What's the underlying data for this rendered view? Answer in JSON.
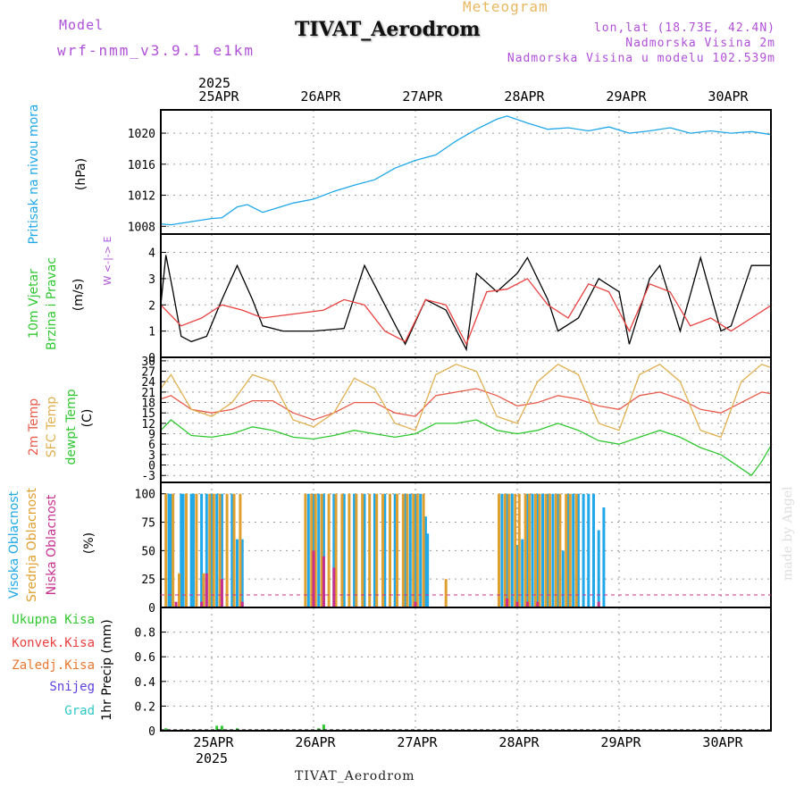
{
  "header": {
    "model_label": "Model",
    "model_run": "wrf-nmm_v3.9.1 e1km",
    "title": "TIVAT_Aerodrom",
    "meteogram": "Meteogram",
    "lonlat": "lon,lat (18.73E, 42.4N)",
    "altitude": "Nadmorska Visina 2m",
    "model_altitude": "Nadmorska Visina u modelu 102.539m"
  },
  "footer": {
    "station": "TIVAT_Aerodrom"
  },
  "watermark": "made by Angel",
  "colors": {
    "pressure": "#1ea7e8",
    "wind_speed": "#000000",
    "wind_gust": "#e84040",
    "temp2m": "#e85a4a",
    "sfc_temp": "#e0b050",
    "dewpoint": "#30c830",
    "high_cloud": "#20a8e8",
    "mid_cloud": "#e0a030",
    "low_cloud": "#c83090",
    "legend_purple": "#b050d8"
  },
  "chart_data": [
    {
      "type": "line",
      "panel": "pressure",
      "title": "",
      "ylabel": "Pritisak na nivou mora",
      "unit": "(hPa)",
      "ylim": [
        1007,
        1023
      ],
      "yticks": [
        1008,
        1012,
        1016,
        1020
      ],
      "x_top_year": "2025",
      "x_days": [
        "25APR",
        "26APR",
        "27APR",
        "28APR",
        "29APR",
        "30APR"
      ],
      "xlim": [
        0,
        6
      ],
      "grid": true,
      "series": [
        {
          "color": "#1ea7e8",
          "x": [
            0,
            0.1,
            0.3,
            0.5,
            0.6,
            0.75,
            0.85,
            1.0,
            1.1,
            1.3,
            1.5,
            1.7,
            1.9,
            2.1,
            2.3,
            2.5,
            2.7,
            2.9,
            3.1,
            3.3,
            3.4,
            3.6,
            3.8,
            4.0,
            4.2,
            4.4,
            4.6,
            4.8,
            5.0,
            5.2,
            5.4,
            5.6,
            5.8,
            6.0
          ],
          "values": [
            1008.3,
            1008.2,
            1008.6,
            1009.0,
            1009.1,
            1010.5,
            1010.8,
            1009.8,
            1010.2,
            1011.0,
            1011.5,
            1012.5,
            1013.3,
            1014.0,
            1015.5,
            1016.5,
            1017.2,
            1019.0,
            1020.5,
            1021.8,
            1022.2,
            1021.3,
            1020.5,
            1020.7,
            1020.3,
            1020.8,
            1020.0,
            1020.3,
            1020.7,
            1020.0,
            1020.3,
            1020.0,
            1020.2,
            1019.8
          ]
        }
      ]
    },
    {
      "type": "line",
      "panel": "wind",
      "title": "",
      "ylabel": "10m Vjetar Brzina i Pravac",
      "unit": "(m/s)",
      "direction_label": "W <-|-> E",
      "ylim": [
        0,
        4.7
      ],
      "yticks": [
        0,
        1,
        2,
        3,
        4
      ],
      "xlim": [
        0,
        6
      ],
      "grid": true,
      "series": [
        {
          "name": "speed",
          "color": "#000000",
          "x": [
            0,
            0.05,
            0.12,
            0.2,
            0.3,
            0.45,
            0.6,
            0.75,
            0.9,
            1.0,
            1.2,
            1.5,
            1.8,
            2.0,
            2.2,
            2.4,
            2.6,
            2.8,
            3.0,
            3.1,
            3.3,
            3.5,
            3.6,
            3.8,
            3.9,
            4.1,
            4.3,
            4.5,
            4.6,
            4.8,
            4.9,
            5.1,
            5.3,
            5.5,
            5.6,
            5.8,
            6.0
          ],
          "values": [
            2.0,
            3.9,
            2.5,
            0.8,
            0.6,
            0.8,
            2.2,
            3.5,
            2.2,
            1.2,
            1.0,
            1.0,
            1.1,
            3.5,
            2.0,
            0.5,
            2.2,
            1.8,
            0.3,
            3.2,
            2.5,
            3.2,
            3.8,
            2.2,
            1.0,
            1.5,
            3.0,
            2.5,
            0.5,
            3.0,
            3.5,
            1.0,
            3.8,
            1.0,
            1.2,
            3.5,
            3.5
          ]
        },
        {
          "name": "gust",
          "color": "#e84040",
          "x": [
            0,
            0.2,
            0.4,
            0.6,
            0.8,
            1.0,
            1.2,
            1.4,
            1.6,
            1.8,
            2.0,
            2.2,
            2.4,
            2.6,
            2.8,
            3.0,
            3.2,
            3.4,
            3.6,
            3.8,
            4.0,
            4.2,
            4.4,
            4.6,
            4.8,
            5.0,
            5.2,
            5.4,
            5.6,
            5.8,
            6.0
          ],
          "values": [
            2.0,
            1.2,
            1.5,
            2.0,
            1.8,
            1.5,
            1.6,
            1.7,
            1.8,
            2.2,
            2.0,
            1.0,
            0.6,
            2.2,
            2.0,
            0.5,
            2.5,
            2.6,
            3.0,
            2.0,
            1.5,
            2.8,
            2.5,
            1.0,
            2.8,
            2.5,
            1.2,
            1.5,
            1.0,
            1.5,
            2.0
          ]
        }
      ]
    },
    {
      "type": "line",
      "panel": "temperature",
      "title": "",
      "ylabel": [
        "2m Temp",
        "SFC Temp",
        "dewpt Temp"
      ],
      "unit": "(C)",
      "ylim": [
        -5,
        31
      ],
      "yticks": [
        -3,
        0,
        3,
        6,
        9,
        12,
        15,
        18,
        21,
        24,
        27,
        30
      ],
      "xlim": [
        0,
        6
      ],
      "grid": true,
      "series": [
        {
          "name": "2m Temp",
          "color": "#e85a4a",
          "x": [
            0,
            0.1,
            0.3,
            0.5,
            0.7,
            0.9,
            1.1,
            1.3,
            1.5,
            1.7,
            1.9,
            2.1,
            2.3,
            2.5,
            2.7,
            2.9,
            3.1,
            3.3,
            3.5,
            3.7,
            3.9,
            4.1,
            4.3,
            4.5,
            4.7,
            4.9,
            5.1,
            5.3,
            5.5,
            5.7,
            5.9,
            6.0
          ],
          "values": [
            19,
            20,
            16,
            15,
            16,
            18.5,
            18.5,
            15,
            13,
            15,
            18,
            18,
            15,
            14,
            20,
            21,
            22,
            20,
            17,
            18,
            20,
            19,
            17,
            16,
            20,
            21,
            19,
            16,
            15,
            18,
            21,
            20.5
          ]
        },
        {
          "name": "SFC Temp",
          "color": "#e0b050",
          "x": [
            0,
            0.1,
            0.3,
            0.5,
            0.7,
            0.9,
            1.1,
            1.3,
            1.5,
            1.7,
            1.9,
            2.1,
            2.3,
            2.5,
            2.7,
            2.9,
            3.1,
            3.3,
            3.5,
            3.7,
            3.9,
            4.1,
            4.3,
            4.5,
            4.7,
            4.9,
            5.1,
            5.3,
            5.5,
            5.7,
            5.9,
            6.0
          ],
          "values": [
            22,
            26,
            16,
            14,
            18,
            26,
            24,
            13,
            11,
            15,
            25,
            22,
            12,
            10,
            26,
            29,
            27,
            14,
            12,
            24,
            29,
            26,
            12,
            10,
            26,
            29,
            24,
            10,
            8,
            24,
            29,
            28
          ]
        },
        {
          "name": "dewpt Temp",
          "color": "#30c830",
          "x": [
            0,
            0.1,
            0.3,
            0.5,
            0.7,
            0.9,
            1.1,
            1.3,
            1.5,
            1.7,
            1.9,
            2.1,
            2.3,
            2.5,
            2.7,
            2.9,
            3.1,
            3.3,
            3.5,
            3.7,
            3.9,
            4.1,
            4.3,
            4.5,
            4.7,
            4.9,
            5.1,
            5.3,
            5.5,
            5.7,
            5.8,
            5.9,
            6.0
          ],
          "values": [
            10,
            13,
            8.5,
            8,
            9,
            11,
            10,
            8,
            7.5,
            8.5,
            10,
            9,
            8,
            9,
            12,
            12,
            13,
            10,
            9,
            10,
            12,
            10,
            7,
            6,
            8,
            10,
            8,
            5,
            3,
            -1,
            -3,
            1,
            6
          ]
        }
      ]
    },
    {
      "type": "bar",
      "panel": "clouds",
      "title": "",
      "ylabel": [
        "Visoka Oblacnost",
        "Srednja Oblacnost",
        "Niska Oblacnost"
      ],
      "unit": "(%)",
      "ylim": [
        0,
        110
      ],
      "yticks": [
        0,
        25,
        50,
        75,
        100
      ],
      "xlim": [
        0,
        6
      ],
      "grid": true,
      "series": [
        {
          "name": "Visoka Oblacnost",
          "color": "#20a8e8",
          "x": [
            0.08,
            0.1,
            0.2,
            0.22,
            0.3,
            0.32,
            0.4,
            0.45,
            0.5,
            0.55,
            0.6,
            0.7,
            0.75,
            0.8,
            1.45,
            1.5,
            1.55,
            1.6,
            1.7,
            1.8,
            1.9,
            2.0,
            2.1,
            2.2,
            2.3,
            2.4,
            2.45,
            2.5,
            2.55,
            2.6,
            2.62,
            3.35,
            3.4,
            3.45,
            3.5,
            3.55,
            3.6,
            3.65,
            3.7,
            3.75,
            3.8,
            3.85,
            3.9,
            3.95,
            4.0,
            4.05,
            4.1,
            4.15,
            4.2,
            4.25,
            4.3,
            4.35
          ],
          "values": [
            100,
            100,
            100,
            100,
            100,
            100,
            100,
            100,
            100,
            100,
            100,
            100,
            60,
            60,
            100,
            100,
            100,
            100,
            100,
            100,
            100,
            100,
            100,
            100,
            100,
            100,
            100,
            100,
            100,
            80,
            65,
            100,
            100,
            100,
            55,
            60,
            100,
            100,
            100,
            100,
            100,
            100,
            100,
            50,
            100,
            100,
            100,
            100,
            100,
            100,
            68,
            88
          ]
        },
        {
          "name": "Srednja Oblacnost",
          "color": "#e0a030",
          "x": [
            0.05,
            0.12,
            0.18,
            0.25,
            0.35,
            0.42,
            0.48,
            0.52,
            0.58,
            0.65,
            0.72,
            0.78,
            1.42,
            1.48,
            1.52,
            1.58,
            1.65,
            1.72,
            1.78,
            1.85,
            1.92,
            1.98,
            2.05,
            2.12,
            2.18,
            2.25,
            2.32,
            2.38,
            2.42,
            2.48,
            2.52,
            2.58,
            2.8,
            3.32,
            3.38,
            3.42,
            3.48,
            3.52,
            3.58,
            3.62,
            3.68,
            3.72,
            3.78,
            3.82,
            3.88,
            3.92,
            3.98,
            4.02,
            4.08
          ],
          "values": [
            100,
            100,
            30,
            100,
            100,
            30,
            100,
            100,
            100,
            100,
            100,
            100,
            100,
            100,
            100,
            100,
            100,
            100,
            100,
            100,
            100,
            100,
            100,
            100,
            100,
            100,
            100,
            100,
            100,
            100,
            100,
            100,
            25,
            100,
            100,
            100,
            100,
            100,
            100,
            100,
            100,
            100,
            100,
            100,
            100,
            100,
            100,
            100,
            100
          ]
        },
        {
          "name": "Niska Oblacnost",
          "color": "#c83090",
          "x": [
            0.15,
            0.4,
            0.45,
            0.6,
            0.8,
            1.5,
            1.6,
            1.7,
            2.5,
            3.4,
            3.5,
            3.6,
            3.7,
            4.3
          ],
          "values": [
            5,
            5,
            30,
            25,
            5,
            50,
            45,
            35,
            5,
            8,
            5,
            5,
            5,
            5
          ]
        }
      ]
    },
    {
      "type": "bar",
      "panel": "precipitation",
      "title": "",
      "ylabel": "1hr Precip (mm)",
      "legend": [
        "Ukupna Kisa",
        "Konvek.Kisa",
        "Zaledj.Kisa",
        "Snijeg",
        "Grad"
      ],
      "legend_colors": [
        "#30c830",
        "#e84040",
        "#e87830",
        "#6040e0",
        "#30c8c8"
      ],
      "ylim": [
        0,
        1
      ],
      "yticks": [
        0,
        0.2,
        0.4,
        0.6,
        0.8
      ],
      "x_days": [
        "25APR",
        "26APR",
        "27APR",
        "28APR",
        "29APR",
        "30APR"
      ],
      "x_bottom_year": "2025",
      "xlim": [
        0,
        6
      ],
      "grid": true,
      "series": [
        {
          "name": "Ukupna Kisa",
          "color": "#30c830",
          "x": [
            0.05,
            0.55,
            0.6,
            0.75,
            1.55,
            1.6
          ],
          "values": [
            0.02,
            0.04,
            0.04,
            0.02,
            0.02,
            0.05
          ]
        }
      ]
    }
  ]
}
